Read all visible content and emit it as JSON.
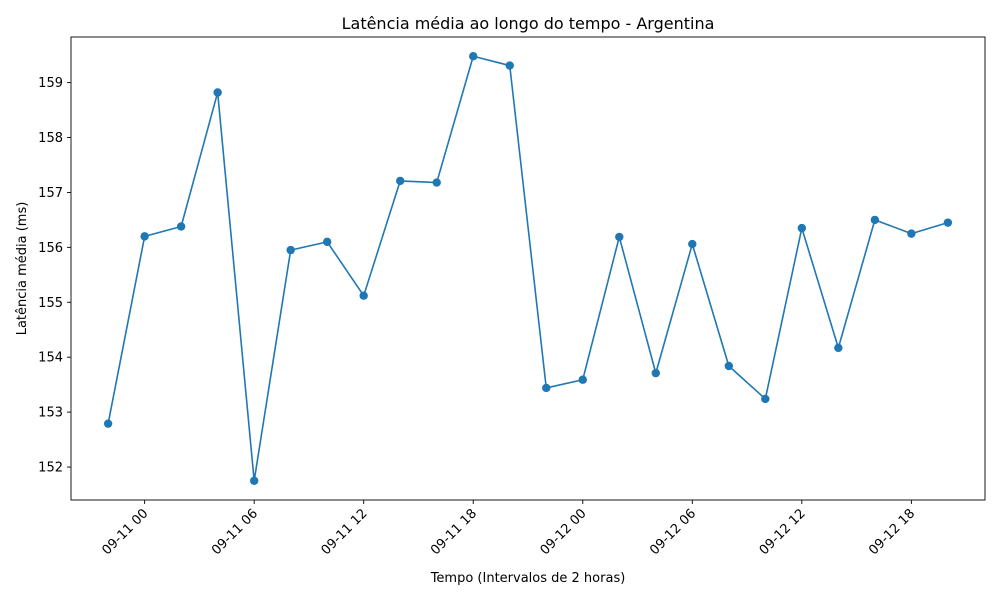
{
  "chart_data": {
    "type": "line",
    "title": "Latência média ao longo do tempo - Argentina",
    "xlabel": "Tempo (Intervalos de 2 horas)",
    "ylabel": "Latência média (ms)",
    "x": [
      "2025-09-10 22:00",
      "2025-09-11 00:00",
      "2025-09-11 02:00",
      "2025-09-11 04:00",
      "2025-09-11 06:00",
      "2025-09-11 08:00",
      "2025-09-11 10:00",
      "2025-09-11 12:00",
      "2025-09-11 14:00",
      "2025-09-11 16:00",
      "2025-09-11 18:00",
      "2025-09-11 20:00",
      "2025-09-11 22:00",
      "2025-09-12 00:00",
      "2025-09-12 02:00",
      "2025-09-12 04:00",
      "2025-09-12 06:00",
      "2025-09-12 08:00",
      "2025-09-12 10:00",
      "2025-09-12 12:00",
      "2025-09-12 14:00",
      "2025-09-12 16:00",
      "2025-09-12 18:00",
      "2025-09-12 20:00"
    ],
    "series": [
      {
        "values": [
          152.79,
          156.2,
          156.38,
          158.82,
          151.75,
          155.95,
          156.1,
          155.12,
          157.21,
          157.18,
          159.48,
          159.31,
          153.44,
          153.59,
          156.19,
          153.71,
          156.06,
          153.84,
          153.24,
          156.35,
          154.17,
          156.5,
          156.25,
          156.45
        ],
        "color": "#1f77b4"
      }
    ],
    "x_ticks": [
      "2025-09-11 00:00",
      "2025-09-11 06:00",
      "2025-09-11 12:00",
      "2025-09-11 18:00",
      "2025-09-12 00:00",
      "2025-09-12 06:00",
      "2025-09-12 12:00",
      "2025-09-12 18:00"
    ],
    "x_tick_labels": [
      "09-11 00",
      "09-11 06",
      "09-11 12",
      "09-11 18",
      "09-12 00",
      "09-12 06",
      "09-12 12",
      "09-12 18"
    ],
    "xlim": [
      "2025-09-10 19:58",
      "2025-09-12 22:02"
    ],
    "y_ticks": [
      152,
      153,
      154,
      155,
      156,
      157,
      158,
      159
    ],
    "ylim": [
      151.4,
      159.83
    ],
    "grid": false,
    "legend": "none"
  }
}
